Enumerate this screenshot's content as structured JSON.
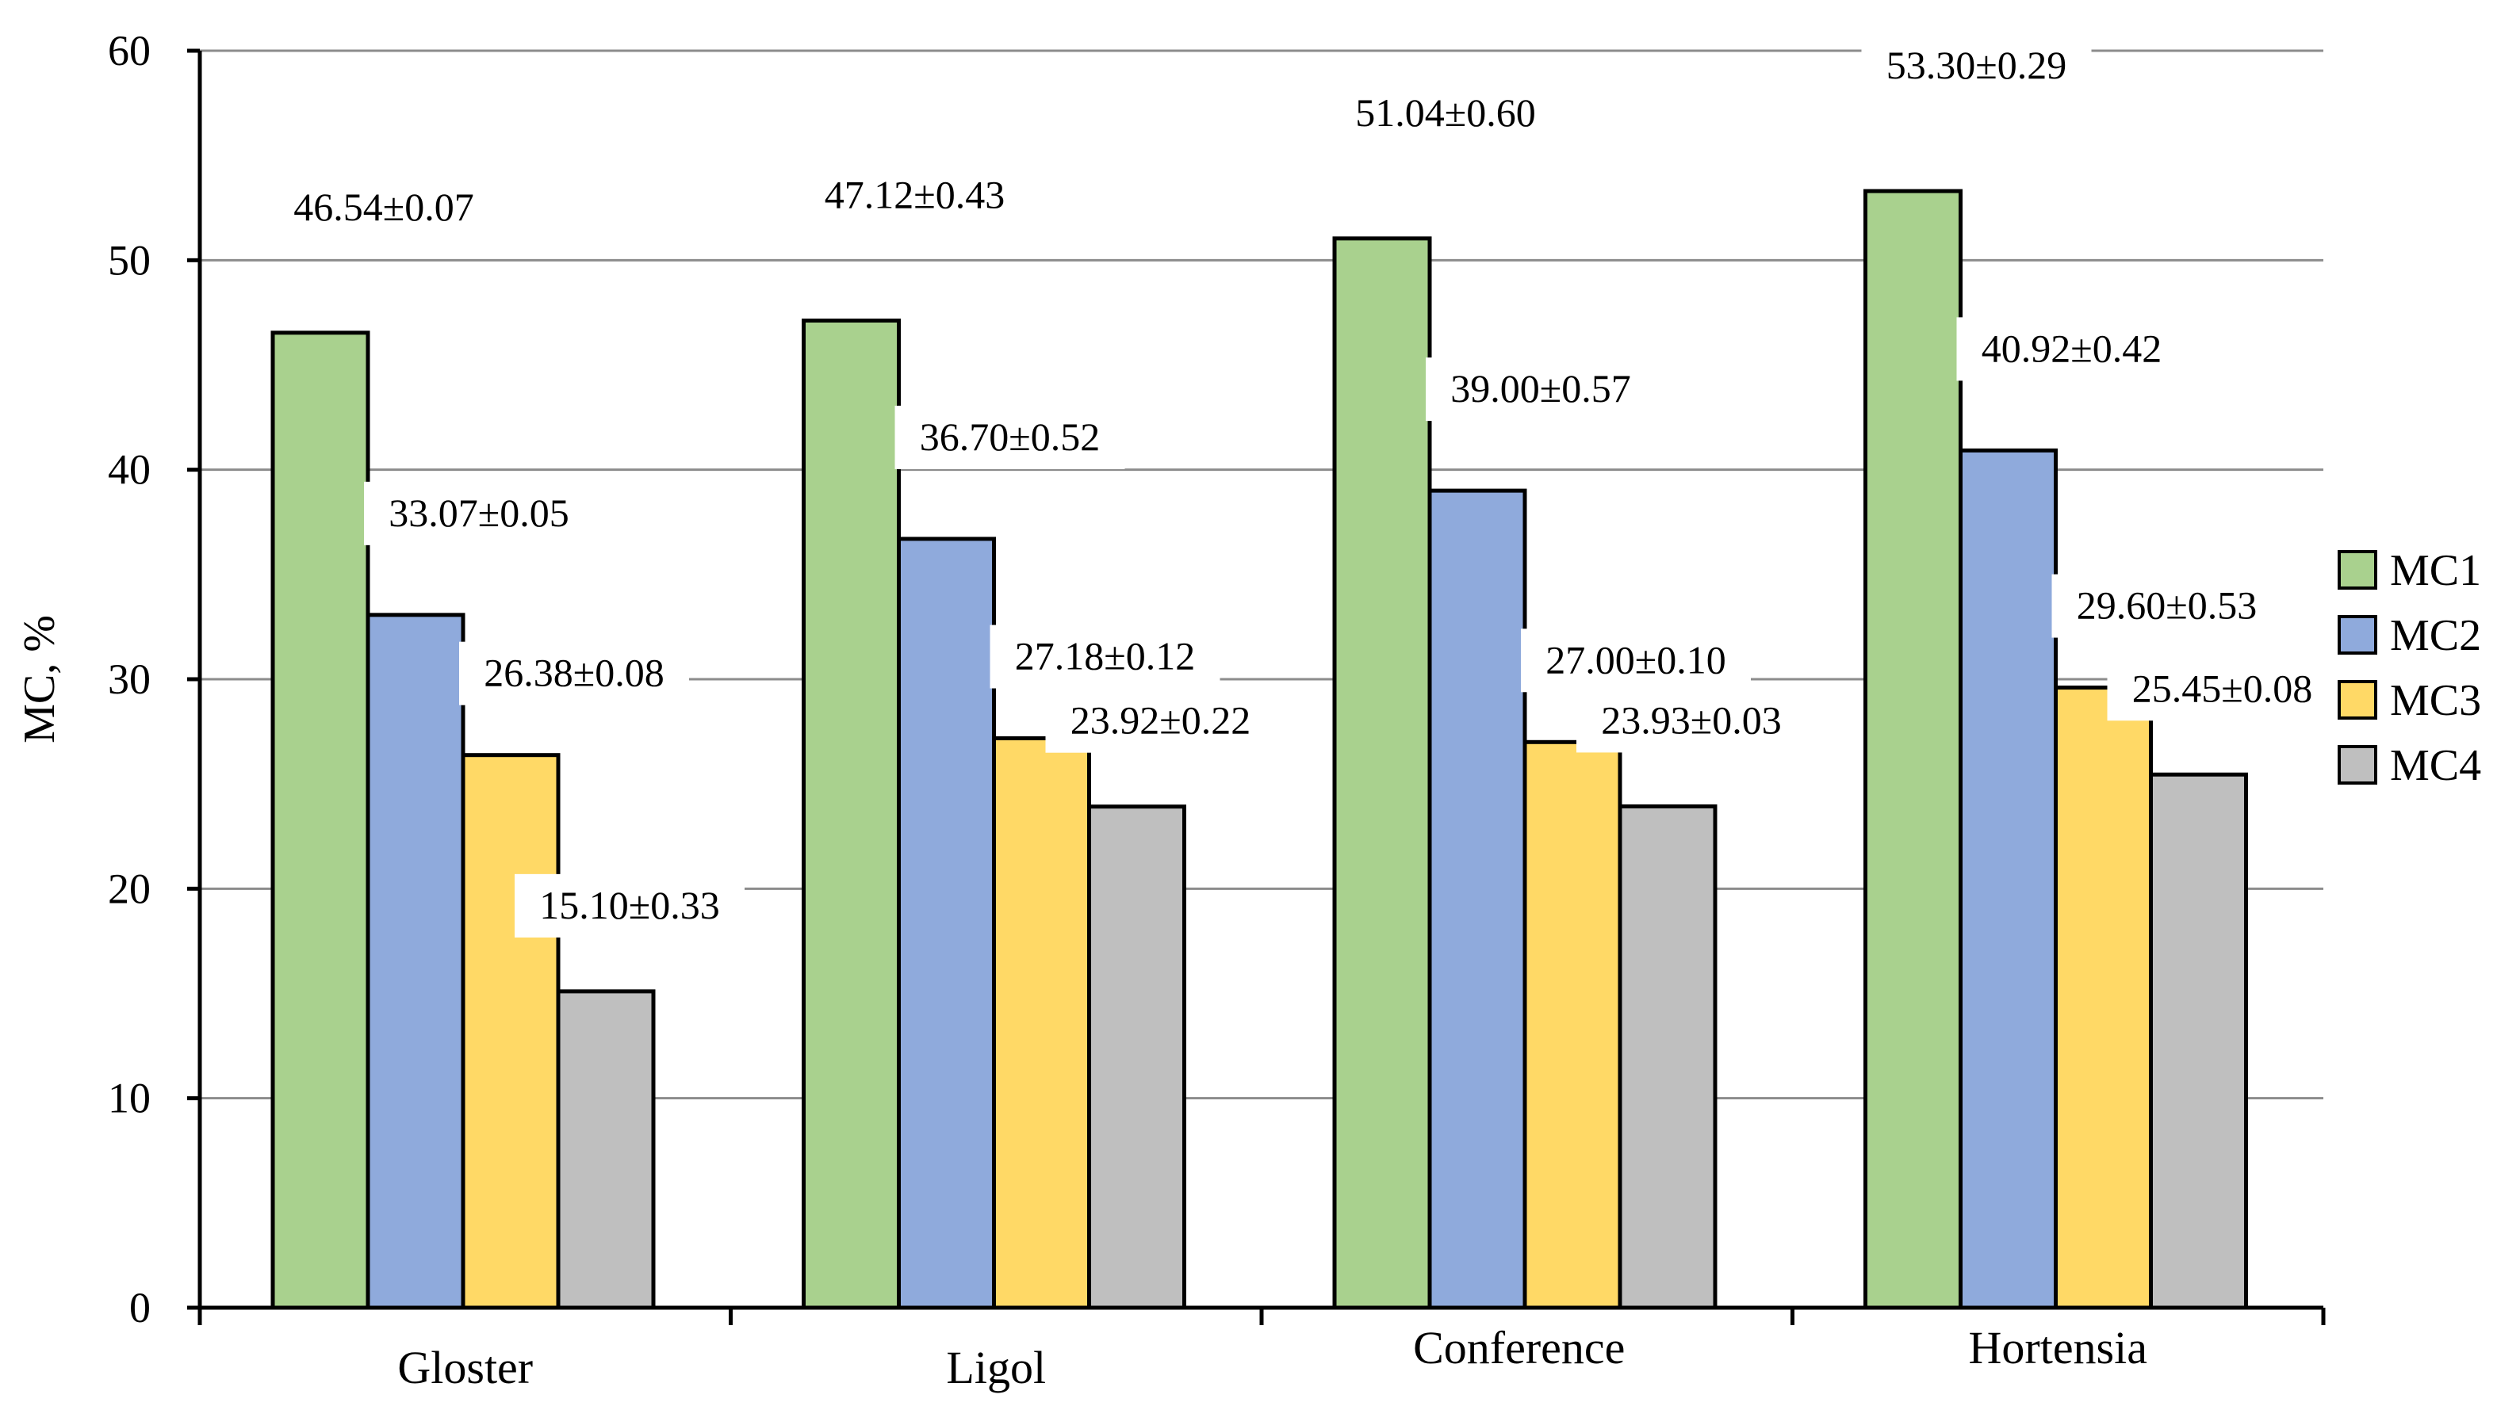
{
  "chart_data": {
    "type": "bar",
    "title": "",
    "xlabel": "",
    "ylabel": "MC, %",
    "ylim": [
      0,
      60
    ],
    "yticks": [
      0,
      10,
      20,
      30,
      40,
      50,
      60
    ],
    "grid": true,
    "legend_position": "right",
    "categories": [
      "Gloster",
      "Ligol",
      "Conference",
      "Hortensia"
    ],
    "series": [
      {
        "name": "MC1",
        "color": "#a9d18e",
        "values": [
          46.54,
          47.12,
          51.04,
          53.3
        ],
        "labels": [
          "46.54±0.07",
          "47.12±0.43",
          "51.04±0.60",
          "53.30±0.29"
        ]
      },
      {
        "name": "MC2",
        "color": "#8faadc",
        "values": [
          33.07,
          36.7,
          39.0,
          40.92
        ],
        "labels": [
          "33.07±0.05",
          "36.70±0.52",
          "39.00±0.57",
          "40.92±0.42"
        ]
      },
      {
        "name": "MC3",
        "color": "#ffd966",
        "values": [
          26.38,
          27.18,
          27.0,
          29.6
        ],
        "labels": [
          "26.38±0.08",
          "27.18±0.12",
          "27.00±0.10",
          "29.60±0.53"
        ]
      },
      {
        "name": "MC4",
        "color": "#bfbfbf",
        "values": [
          15.1,
          23.92,
          23.93,
          25.45
        ],
        "labels": [
          "15.10±0.33",
          "23.92±0.22",
          "23.93±0.03",
          "25.45±0.08"
        ]
      }
    ]
  }
}
